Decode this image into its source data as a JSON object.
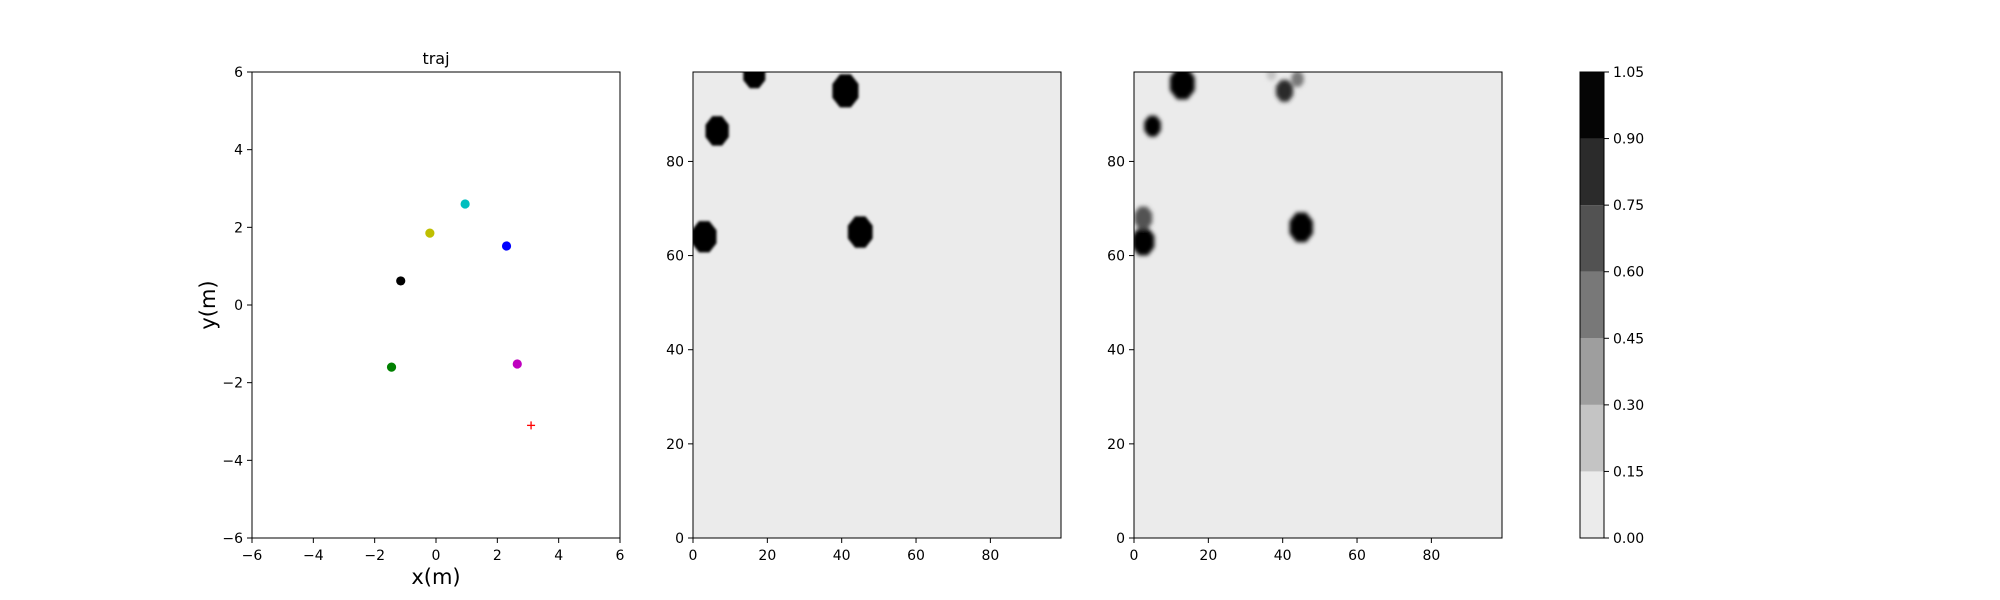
{
  "chart_data": [
    {
      "type": "scatter",
      "title": "traj",
      "xlabel": "x(m)",
      "ylabel": "y(m)",
      "xlim": [
        -6,
        6
      ],
      "ylim": [
        -6,
        6
      ],
      "xticks": [
        "−6",
        "−4",
        "−2",
        "0",
        "2",
        "4",
        "6"
      ],
      "yticks": [
        "−6",
        "−4",
        "−2",
        "0",
        "2",
        "4",
        "6"
      ],
      "points": [
        {
          "x": -1.15,
          "y": 0.62,
          "color": "#000000",
          "marker": "dot"
        },
        {
          "x": -0.2,
          "y": 1.85,
          "color": "#bfbf00",
          "marker": "dot"
        },
        {
          "x": 0.95,
          "y": 2.6,
          "color": "#00bfbf",
          "marker": "dot"
        },
        {
          "x": 2.3,
          "y": 1.52,
          "color": "#0000ff",
          "marker": "dot"
        },
        {
          "x": -1.45,
          "y": -1.6,
          "color": "#008000",
          "marker": "dot"
        },
        {
          "x": 2.65,
          "y": -1.52,
          "color": "#bf00bf",
          "marker": "dot"
        },
        {
          "x": 3.1,
          "y": -3.1,
          "color": "#ff0000",
          "marker": "plus"
        }
      ],
      "grid": false
    },
    {
      "type": "heatmap",
      "xlim": [
        0,
        99
      ],
      "ylim": [
        0,
        99
      ],
      "xticks": [
        "0",
        "20",
        "40",
        "60",
        "80"
      ],
      "yticks": [
        "0",
        "20",
        "40",
        "60",
        "80"
      ],
      "background_level": 0.08,
      "blobs": [
        {
          "x": 3,
          "y": 64,
          "r": 3.6,
          "level": 1.0
        },
        {
          "x": 6.5,
          "y": 86.5,
          "r": 3.4,
          "level": 1.0
        },
        {
          "x": 16.5,
          "y": 98.5,
          "r": 3.2,
          "level": 1.0
        },
        {
          "x": 41,
          "y": 95,
          "r": 3.8,
          "level": 1.0
        },
        {
          "x": 45,
          "y": 65,
          "r": 3.6,
          "level": 1.0
        }
      ]
    },
    {
      "type": "heatmap",
      "xlim": [
        0,
        99
      ],
      "ylim": [
        0,
        99
      ],
      "xticks": [
        "0",
        "20",
        "40",
        "60",
        "80"
      ],
      "yticks": [
        "0",
        "20",
        "40",
        "60",
        "80"
      ],
      "background_level": 0.08,
      "blobs": [
        {
          "x": 2.5,
          "y": 63,
          "r": 3.2,
          "level": 0.98
        },
        {
          "x": 2.5,
          "y": 68,
          "r": 2.6,
          "level": 0.7
        },
        {
          "x": 5,
          "y": 87.5,
          "r": 2.4,
          "level": 0.9
        },
        {
          "x": 13,
          "y": 96.5,
          "r": 3.6,
          "level": 0.97
        },
        {
          "x": 40.5,
          "y": 95,
          "r": 2.5,
          "level": 0.85
        },
        {
          "x": 44,
          "y": 97.5,
          "r": 1.8,
          "level": 0.45
        },
        {
          "x": 37,
          "y": 98.5,
          "r": 1.4,
          "level": 0.25
        },
        {
          "x": 45,
          "y": 66,
          "r": 3.4,
          "level": 0.98
        }
      ]
    },
    {
      "type": "colorbar",
      "levels": [
        0.0,
        0.15,
        0.3,
        0.45,
        0.6,
        0.75,
        0.9,
        1.05
      ],
      "labels": [
        "0.00",
        "0.15",
        "0.30",
        "0.45",
        "0.60",
        "0.75",
        "0.90",
        "1.05"
      ],
      "colors": [
        "#ebebeb",
        "#c4c4c4",
        "#9e9e9e",
        "#787878",
        "#525252",
        "#2b2b2b",
        "#050505"
      ]
    }
  ]
}
